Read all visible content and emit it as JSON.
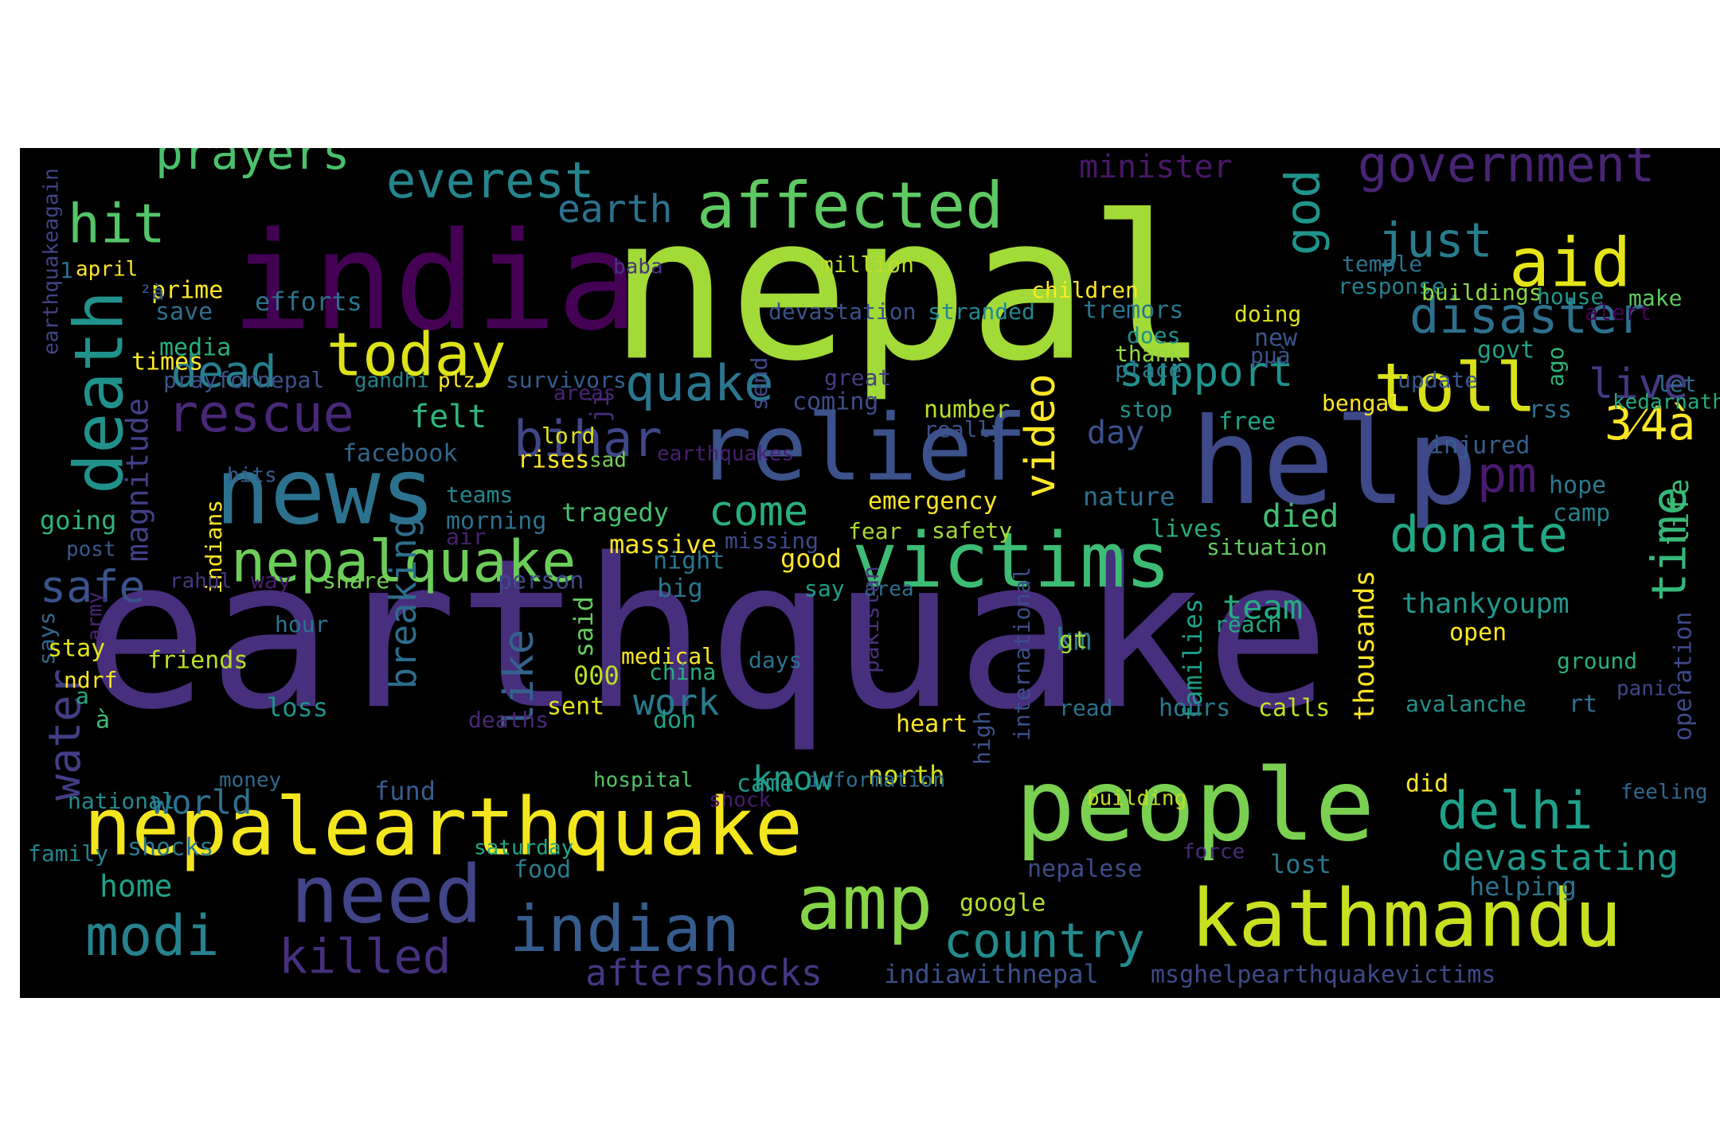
{
  "canvas": {
    "background": "#000000"
  },
  "words": [
    {
      "t": "earthquake",
      "c": "#472f7d"
    },
    {
      "t": "nepal",
      "c": "#a2da37"
    },
    {
      "t": "india",
      "c": "#440154"
    },
    {
      "t": "nepalearthquake",
      "c": "#f4e61e"
    },
    {
      "t": "people",
      "c": "#7ad151"
    },
    {
      "t": "kathmandu",
      "c": "#c8e020"
    },
    {
      "t": "help",
      "c": "#3e4989"
    },
    {
      "t": "relief",
      "c": "#3b528b"
    },
    {
      "t": "news",
      "c": "#2c728e"
    },
    {
      "t": "victims",
      "c": "#3dbc74"
    },
    {
      "t": "affected",
      "c": "#5ec962"
    },
    {
      "t": "need",
      "c": "#414487"
    },
    {
      "t": "indian",
      "c": "#365c8d"
    },
    {
      "t": "amp",
      "c": "#86d549"
    },
    {
      "t": "death",
      "c": "#21918c"
    },
    {
      "t": "toll",
      "c": "#d8e219"
    },
    {
      "t": "modi",
      "c": "#26828e"
    },
    {
      "t": "today",
      "c": "#dde318"
    },
    {
      "t": "nepalquake",
      "c": "#6ccd5a"
    },
    {
      "t": "aid",
      "c": "#e5e419"
    },
    {
      "t": "government",
      "c": "#482475"
    },
    {
      "t": "country",
      "c": "#238a8d"
    },
    {
      "t": "delhi",
      "c": "#1fa188"
    },
    {
      "t": "disaster",
      "c": "#2d708e"
    },
    {
      "t": "killed",
      "c": "#46307e"
    },
    {
      "t": "everest",
      "c": "#25858e"
    },
    {
      "t": "prayers",
      "c": "#4ac16d"
    },
    {
      "t": "rescue",
      "c": "#482878"
    },
    {
      "t": "bihar",
      "c": "#3f4788"
    },
    {
      "t": "god",
      "c": "#1f948c"
    },
    {
      "t": "just",
      "c": "#287d8e"
    },
    {
      "t": "quake",
      "c": "#2a768e"
    },
    {
      "t": "hit",
      "c": "#54c568"
    },
    {
      "t": "pm",
      "c": "#481a6c"
    },
    {
      "t": "dead",
      "c": "#277f8e"
    },
    {
      "t": "live",
      "c": "#443983"
    },
    {
      "t": "time",
      "c": "#35b779"
    },
    {
      "t": "donate",
      "c": "#22a884"
    },
    {
      "t": "safe",
      "c": "#3b528b"
    },
    {
      "t": "water",
      "c": "#433e85"
    },
    {
      "t": "devastating",
      "c": "#1e9b8a"
    },
    {
      "t": "support",
      "c": "#20928c"
    },
    {
      "t": "come",
      "c": "#29af7f"
    },
    {
      "t": "aftershocks",
      "c": "#453781"
    },
    {
      "t": "video",
      "c": "#fde725"
    },
    {
      "t": "earth",
      "c": "#2c728e"
    },
    {
      "t": "like",
      "c": "#33638d"
    },
    {
      "t": "breaking",
      "c": "#2e6e8e"
    },
    {
      "t": "world",
      "c": "#2d708e"
    },
    {
      "t": "know",
      "c": "#1f9e89"
    },
    {
      "t": "team",
      "c": "#25ac82"
    },
    {
      "t": "minister",
      "c": "#481769"
    },
    {
      "t": "magnitude",
      "c": "#424086"
    },
    {
      "t": "work",
      "c": "#287c8e"
    },
    {
      "t": "thankyoupm",
      "c": "#1f988b"
    },
    {
      "t": "felt",
      "c": "#31b57b"
    },
    {
      "t": "died",
      "c": "#42be71"
    },
    {
      "t": "3⁄4à",
      "c": "#fde725"
    },
    {
      "t": "km",
      "c": "#2a788e"
    },
    {
      "t": "life",
      "c": "#3fbc73"
    },
    {
      "t": "home",
      "c": "#1fa187"
    },
    {
      "t": "day",
      "c": "#3c508b"
    },
    {
      "t": "indiawithnepal",
      "c": "#3b518b"
    },
    {
      "t": "msghelpearthquakevictims",
      "c": "#3e4a89"
    },
    {
      "t": "tragedy",
      "c": "#46c06f"
    },
    {
      "t": "massive",
      "c": "#fde725"
    },
    {
      "t": "facebook",
      "c": "#31678e"
    },
    {
      "t": "google",
      "c": "#b5de2b"
    },
    {
      "t": "nepalese",
      "c": "#3e4c8a"
    },
    {
      "t": "food",
      "c": "#287d8e"
    },
    {
      "t": "fund",
      "c": "#365d8d"
    },
    {
      "t": "north",
      "c": "#d5e21a"
    },
    {
      "t": "helping",
      "c": "#2c738e"
    },
    {
      "t": "lost",
      "c": "#2a768e"
    },
    {
      "t": "emergency",
      "c": "#fde725"
    },
    {
      "t": "nature",
      "c": "#2d708e"
    },
    {
      "t": "lives",
      "c": "#26ad81"
    },
    {
      "t": "number",
      "c": "#bade28"
    },
    {
      "t": "coming",
      "c": "#3e4c8a"
    },
    {
      "t": "injured",
      "c": "#355f8d"
    },
    {
      "t": "hope",
      "c": "#2a788e"
    },
    {
      "t": "camp",
      "c": "#25838e"
    },
    {
      "t": "rss",
      "c": "#2d718e"
    },
    {
      "t": "ago",
      "c": "#2fb47c"
    },
    {
      "t": "free",
      "c": "#20a386"
    },
    {
      "t": "stop",
      "c": "#21918c"
    },
    {
      "t": "really",
      "c": "#3b528b"
    },
    {
      "t": "good",
      "c": "#fde725"
    },
    {
      "t": "night",
      "c": "#2a768e"
    },
    {
      "t": "big",
      "c": "#2b748e"
    },
    {
      "t": "fear",
      "c": "#a8db34"
    },
    {
      "t": "safety",
      "c": "#a5db36"
    },
    {
      "t": "situation",
      "c": "#63cb5f"
    },
    {
      "t": "person",
      "c": "#3e4a89"
    },
    {
      "t": "say",
      "c": "#1fa088"
    },
    {
      "t": "area",
      "c": "#2e6d8e"
    },
    {
      "t": "thousands",
      "c": "#fde725"
    },
    {
      "t": "families",
      "c": "#1f9e89"
    },
    {
      "t": "international",
      "c": "#3d4e8a"
    },
    {
      "t": "pakistan",
      "c": "#46327e"
    },
    {
      "t": "said",
      "c": "#65cb5e"
    },
    {
      "t": "send",
      "c": "#3e4989"
    },
    {
      "t": "ji",
      "c": "#472c7a"
    },
    {
      "t": "lord",
      "c": "#dfe318"
    },
    {
      "t": "sad",
      "c": "#7ad151"
    },
    {
      "t": "rises",
      "c": "#fde725"
    },
    {
      "t": "indians",
      "c": "#fde725"
    },
    {
      "t": "hits",
      "c": "#365c8d"
    },
    {
      "t": "teams",
      "c": "#24878e"
    },
    {
      "t": "morning",
      "c": "#2c738e"
    },
    {
      "t": "air",
      "c": "#482071"
    },
    {
      "t": "going",
      "c": "#2fb47c"
    },
    {
      "t": "post",
      "c": "#38588c"
    },
    {
      "t": "rahul",
      "c": "#453882"
    },
    {
      "t": "way",
      "c": "#481c6e"
    },
    {
      "t": "share",
      "c": "#73d056"
    },
    {
      "t": "missing",
      "c": "#3e4a89"
    },
    {
      "t": "hour",
      "c": "#2b758e"
    },
    {
      "t": "says",
      "c": "#31688e"
    },
    {
      "t": "army",
      "c": "#482576"
    },
    {
      "t": "stay",
      "c": "#e2e418"
    },
    {
      "t": "friends",
      "c": "#bade28"
    },
    {
      "t": "ndrf",
      "c": "#fde725"
    },
    {
      "t": "medical",
      "c": "#fde725"
    },
    {
      "t": "china",
      "c": "#26ad81"
    },
    {
      "t": "days",
      "c": "#2c728e"
    },
    {
      "t": "000",
      "c": "#bade28"
    },
    {
      "t": "gt",
      "c": "#a5db36"
    },
    {
      "t": "reach",
      "c": "#24aa83"
    },
    {
      "t": "open",
      "c": "#fde725"
    },
    {
      "t": "ground",
      "c": "#28ae80"
    },
    {
      "t": "panic",
      "c": "#3f4788"
    },
    {
      "t": "avalanche",
      "c": "#21918c"
    },
    {
      "t": "rt",
      "c": "#2d708e"
    },
    {
      "t": "operation",
      "c": "#3e4989"
    },
    {
      "t": "read",
      "c": "#2c728e"
    },
    {
      "t": "hours",
      "c": "#29798e"
    },
    {
      "t": "calls",
      "c": "#c5e021"
    },
    {
      "t": "heart",
      "c": "#fde725"
    },
    {
      "t": "deaths",
      "c": "#482878"
    },
    {
      "t": "sent",
      "c": "#e2e418"
    },
    {
      "t": "don",
      "c": "#1fa188"
    },
    {
      "t": "loss",
      "c": "#1f958b"
    },
    {
      "t": "high",
      "c": "#3b528b"
    },
    {
      "t": "money",
      "c": "#31688e"
    },
    {
      "t": "national",
      "c": "#228c8d"
    },
    {
      "t": "hospital",
      "c": "#52c569"
    },
    {
      "t": "came",
      "c": "#1f9a8a"
    },
    {
      "t": "shock",
      "c": "#481c6e"
    },
    {
      "t": "information",
      "c": "#2e6e8e"
    },
    {
      "t": "building",
      "c": "#c2df23"
    },
    {
      "t": "did",
      "c": "#fde725"
    },
    {
      "t": "feeling",
      "c": "#31688e"
    },
    {
      "t": "family",
      "c": "#25838e"
    },
    {
      "t": "shocks",
      "c": "#2a788e"
    },
    {
      "t": "saturday",
      "c": "#22a785"
    },
    {
      "t": "force",
      "c": "#472c7a"
    },
    {
      "t": "a",
      "c": "#22a884"
    },
    {
      "t": "à",
      "c": "#3dbc74"
    },
    {
      "t": "april",
      "c": "#fde725"
    },
    {
      "t": "prime",
      "c": "#fde725"
    },
    {
      "t": "save",
      "c": "#2e6e8e"
    },
    {
      "t": "efforts",
      "c": "#2c738e"
    },
    {
      "t": "earthquakeagain",
      "c": "#414487"
    },
    {
      "t": "media",
      "c": "#26ad81"
    },
    {
      "t": "times",
      "c": "#fde725"
    },
    {
      "t": "prayfornepal",
      "c": "#3b528b"
    },
    {
      "t": "gandhi",
      "c": "#25838e"
    },
    {
      "t": "plz",
      "c": "#fde725"
    },
    {
      "t": "survivors",
      "c": "#365c8d"
    },
    {
      "t": "areas",
      "c": "#482677"
    },
    {
      "t": "earthquakes",
      "c": "#481f70"
    },
    {
      "t": "baba",
      "c": "#46337f"
    },
    {
      "t": "million",
      "c": "#bade28"
    },
    {
      "t": "children",
      "c": "#fde725"
    },
    {
      "t": "devastation",
      "c": "#3b528b"
    },
    {
      "t": "stranded",
      "c": "#24878e"
    },
    {
      "t": "tremors",
      "c": "#2a768e"
    },
    {
      "t": "doing",
      "c": "#dde318"
    },
    {
      "t": "does",
      "c": "#21918c"
    },
    {
      "t": "thank",
      "c": "#94d741"
    },
    {
      "t": "place",
      "c": "#2a788e"
    },
    {
      "t": "great",
      "c": "#433d84"
    },
    {
      "t": "new",
      "c": "#39568c"
    },
    {
      "t": "pµà",
      "c": "#3b528b"
    },
    {
      "t": "govt",
      "c": "#1fa188"
    },
    {
      "t": "update",
      "c": "#38588c"
    },
    {
      "t": "bengal",
      "c": "#fde725"
    },
    {
      "t": "temple",
      "c": "#2d708e"
    },
    {
      "t": "response",
      "c": "#277f8e"
    },
    {
      "t": "buildings",
      "c": "#90d743"
    },
    {
      "t": "house",
      "c": "#1f958b"
    },
    {
      "t": "make",
      "c": "#5ec962"
    },
    {
      "t": "alert",
      "c": "#440154"
    },
    {
      "t": "let",
      "c": "#2e6d8e"
    },
    {
      "t": "kedarnath",
      "c": "#25ab82"
    },
    {
      "t": "1",
      "c": "#2d708e"
    },
    {
      "t": "²à",
      "c": "#365d8d"
    }
  ]
}
